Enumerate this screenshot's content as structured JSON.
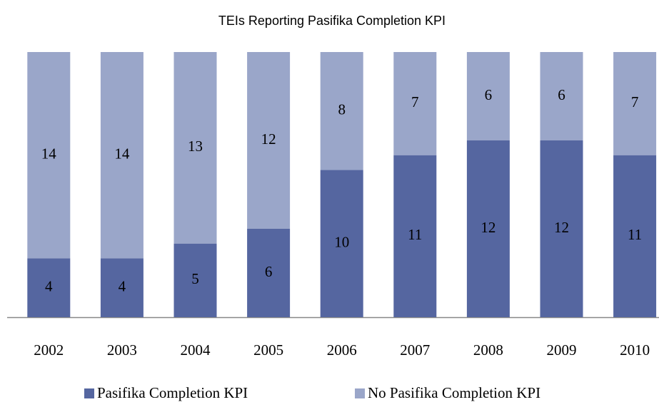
{
  "chart_data": {
    "type": "bar",
    "stacked": true,
    "title": "TEIs Reporting Pasifika Completion KPI",
    "categories": [
      "2002",
      "2003",
      "2004",
      "2005",
      "2006",
      "2007",
      "2008",
      "2009",
      "2010"
    ],
    "series": [
      {
        "name": "Pasifika Completion KPI",
        "color": "#5566a0",
        "values": [
          4,
          4,
          5,
          6,
          10,
          11,
          12,
          12,
          11
        ]
      },
      {
        "name": "No Pasifika Completion KPI",
        "color": "#9aa6c9",
        "values": [
          14,
          14,
          13,
          12,
          8,
          7,
          6,
          6,
          7
        ]
      }
    ],
    "ylim": [
      0,
      18
    ],
    "legend": "bottom"
  }
}
